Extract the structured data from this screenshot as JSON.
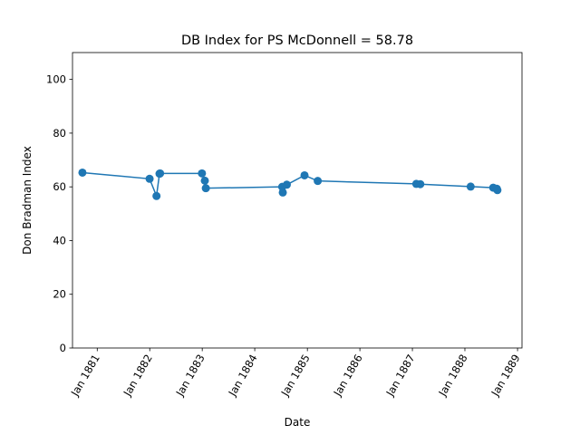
{
  "chart_data": {
    "type": "line",
    "title": "DB Index for PS McDonnell = 58.78",
    "xlabel": "Date",
    "ylabel": "Don Bradman Index",
    "x_ticks": [
      "Jan 1881",
      "Jan 1882",
      "Jan 1883",
      "Jan 1884",
      "Jan 1885",
      "Jan 1886",
      "Jan 1887",
      "Jan 1888",
      "Jan 1889"
    ],
    "y_ticks": [
      "0",
      "20",
      "40",
      "60",
      "80",
      "100"
    ],
    "ylim": [
      0,
      110
    ],
    "xlim": [
      "1880-07-13",
      "1889-02-01"
    ],
    "grid": false,
    "marker": "circle",
    "series_color": "#1f77b4",
    "series": [
      {
        "x": [
          "1880-09-20",
          "1881-12-31",
          "1882-02-17",
          "1882-03-10",
          "1882-03-14",
          "1882-12-30",
          "1883-01-19",
          "1883-01-26",
          "1884-07-10",
          "1884-07-14",
          "1884-08-11",
          "1884-12-12",
          "1885-03-14",
          "1887-01-28",
          "1887-02-25",
          "1888-02-10",
          "1888-07-16",
          "1888-08-10",
          "1888-08-14"
        ],
        "y": [
          65.3,
          63.0,
          56.6,
          64.9,
          65.0,
          65.0,
          62.3,
          59.5,
          60.0,
          57.9,
          60.8,
          64.3,
          62.2,
          61.1,
          61.0,
          60.1,
          59.7,
          59.3,
          58.78
        ]
      }
    ]
  }
}
